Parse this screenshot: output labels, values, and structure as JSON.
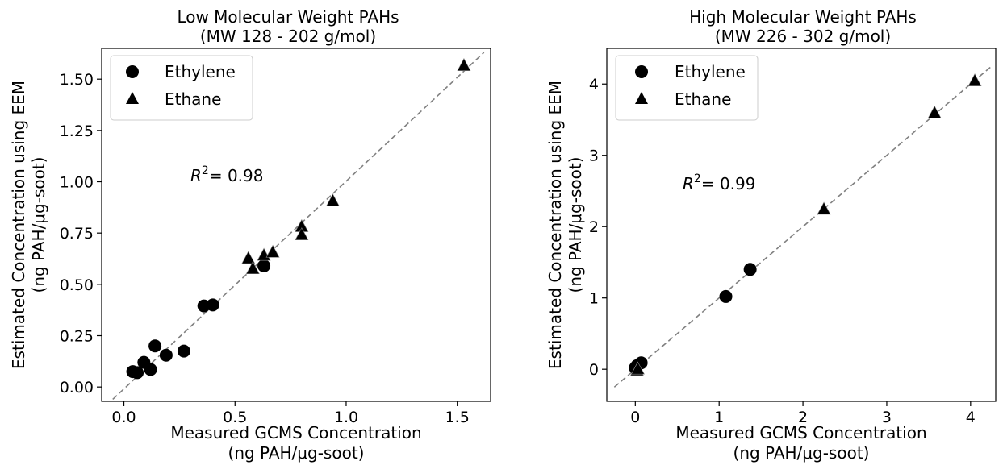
{
  "chart_data": [
    {
      "type": "scatter",
      "title_line1": "Low Molecular Weight PAHs",
      "title_line2": "(MW 128 - 202 g/mol)",
      "xlabel_line1": "Measured GCMS Concentration",
      "xlabel_line2": "(ng PAH/μg-soot)",
      "ylabel_line1": "Estimated Concentration using EEM",
      "ylabel_line2": "(ng PAH/μg-soot)",
      "xlim": [
        -0.1,
        1.65
      ],
      "ylim": [
        -0.07,
        1.65
      ],
      "xticks": [
        0.0,
        0.5,
        1.0,
        1.5
      ],
      "xtick_labels": [
        "0.0",
        "0.5",
        "1.0",
        "1.5"
      ],
      "yticks": [
        0.0,
        0.25,
        0.5,
        0.75,
        1.0,
        1.25,
        1.5
      ],
      "ytick_labels": [
        "0.00",
        "0.25",
        "0.50",
        "0.75",
        "1.00",
        "1.25",
        "1.50"
      ],
      "grid": false,
      "legend_position": "top-left",
      "annotation": {
        "text_prefix": "R",
        "superscript": "2",
        "text_suffix": "= 0.98",
        "x": 0.28,
        "y": 1.02
      },
      "fit_line": {
        "x": [
          -0.05,
          1.62
        ],
        "y": [
          -0.06,
          1.63
        ]
      },
      "series": [
        {
          "name": "Ethylene",
          "marker": "circle",
          "x": [
            0.04,
            0.06,
            0.09,
            0.12,
            0.14,
            0.19,
            0.27,
            0.36,
            0.4,
            0.63
          ],
          "y": [
            0.075,
            0.07,
            0.12,
            0.085,
            0.2,
            0.155,
            0.175,
            0.395,
            0.4,
            0.59
          ]
        },
        {
          "name": "Ethane",
          "marker": "triangle",
          "x": [
            0.56,
            0.58,
            0.63,
            0.67,
            0.8,
            0.8,
            0.94,
            1.53
          ],
          "y": [
            0.625,
            0.575,
            0.64,
            0.655,
            0.78,
            0.74,
            0.905,
            1.565
          ]
        }
      ]
    },
    {
      "type": "scatter",
      "title_line1": "High Molecular Weight PAHs",
      "title_line2": "(MW 226 - 302 g/mol)",
      "xlabel_line1": "Measured GCMS Concentration",
      "xlabel_line2": "(ng PAH/μg-soot)",
      "ylabel_line1": "Estimated Concentration using EEM",
      "ylabel_line2": "(ng PAH/μg-soot)",
      "xlim": [
        -0.34,
        4.3
      ],
      "ylim": [
        -0.45,
        4.5
      ],
      "xticks": [
        0,
        1,
        2,
        3,
        4
      ],
      "xtick_labels": [
        "0",
        "1",
        "2",
        "3",
        "4"
      ],
      "yticks": [
        0,
        1,
        2,
        3,
        4
      ],
      "ytick_labels": [
        "0",
        "1",
        "2",
        "3",
        "4"
      ],
      "grid": false,
      "legend_position": "top-left",
      "annotation": {
        "text_prefix": "R",
        "superscript": "2",
        "text_suffix": "= 0.99",
        "x": 0.55,
        "y": 2.55
      },
      "fit_line": {
        "x": [
          -0.25,
          4.25
        ],
        "y": [
          -0.25,
          4.25
        ]
      },
      "series": [
        {
          "name": "Ethylene",
          "marker": "circle",
          "x": [
            0.0,
            0.02,
            0.07,
            1.08,
            1.37
          ],
          "y": [
            0.02,
            0.05,
            0.09,
            1.02,
            1.4
          ]
        },
        {
          "name": "Ethane",
          "marker": "triangle",
          "x": [
            0.02,
            0.03,
            2.25,
            3.57,
            4.05
          ],
          "y": [
            -0.02,
            0.0,
            2.24,
            3.59,
            4.04
          ]
        }
      ]
    }
  ]
}
